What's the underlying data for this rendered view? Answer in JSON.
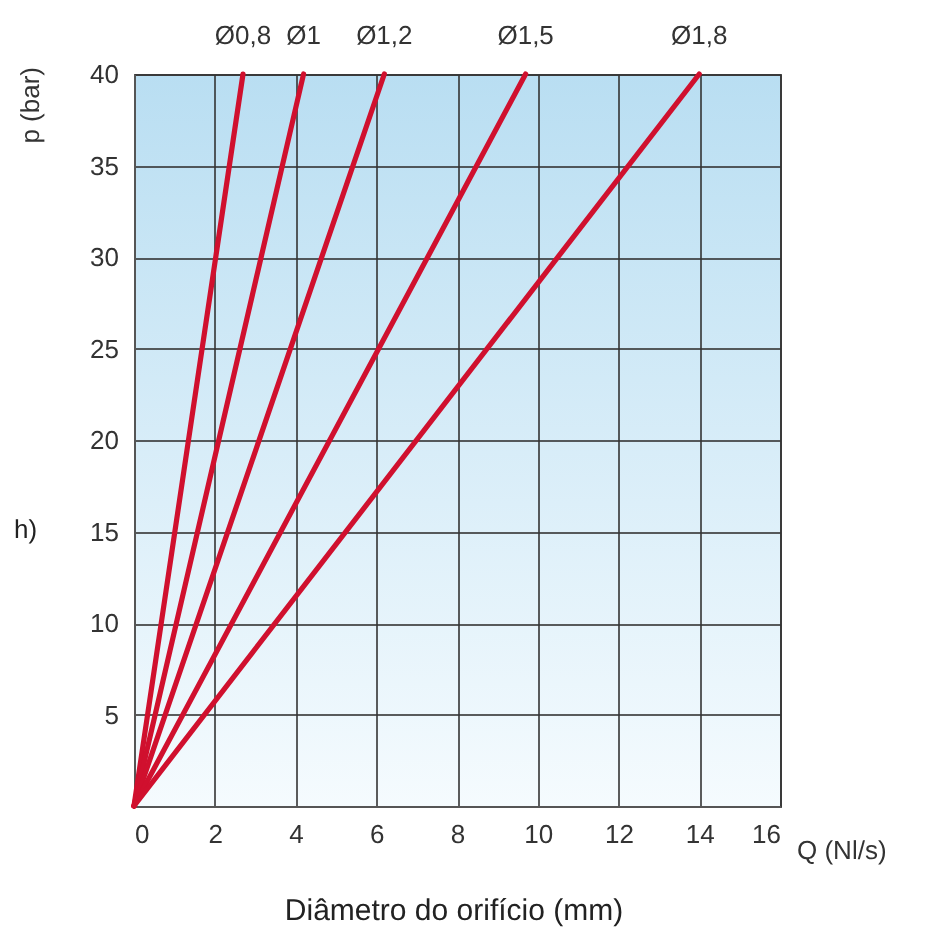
{
  "chart_data": {
    "type": "line",
    "xlabel": "Q (Nl/s)",
    "ylabel": "p (bar)",
    "annotations": [
      "h)",
      "Diâmetro do orifício (mm)"
    ],
    "series": [
      {
        "name": "Ø0,8",
        "color": "#d0102e",
        "x": [
          0,
          2.7
        ],
        "values": [
          0,
          40
        ]
      },
      {
        "name": "Ø1",
        "color": "#d0102e",
        "x": [
          0,
          4.2
        ],
        "values": [
          0,
          40
        ]
      },
      {
        "name": "Ø1,2",
        "color": "#d0102e",
        "x": [
          0,
          6.2
        ],
        "values": [
          0,
          40
        ]
      },
      {
        "name": "Ø1,5",
        "color": "#d0102e",
        "x": [
          0,
          9.7
        ],
        "values": [
          0,
          40
        ]
      },
      {
        "name": "Ø1,8",
        "color": "#d0102e",
        "x": [
          0,
          14
        ],
        "values": [
          0,
          40
        ]
      }
    ],
    "xlim": [
      0,
      16
    ],
    "xticks": [
      0,
      2,
      4,
      6,
      8,
      10,
      12,
      14,
      16
    ],
    "ylim": [
      0,
      40
    ],
    "yticks": [
      5,
      10,
      15,
      20,
      25,
      30,
      35,
      40
    ],
    "grid": true,
    "legend": false,
    "marker": "none",
    "line_style": "solid"
  }
}
